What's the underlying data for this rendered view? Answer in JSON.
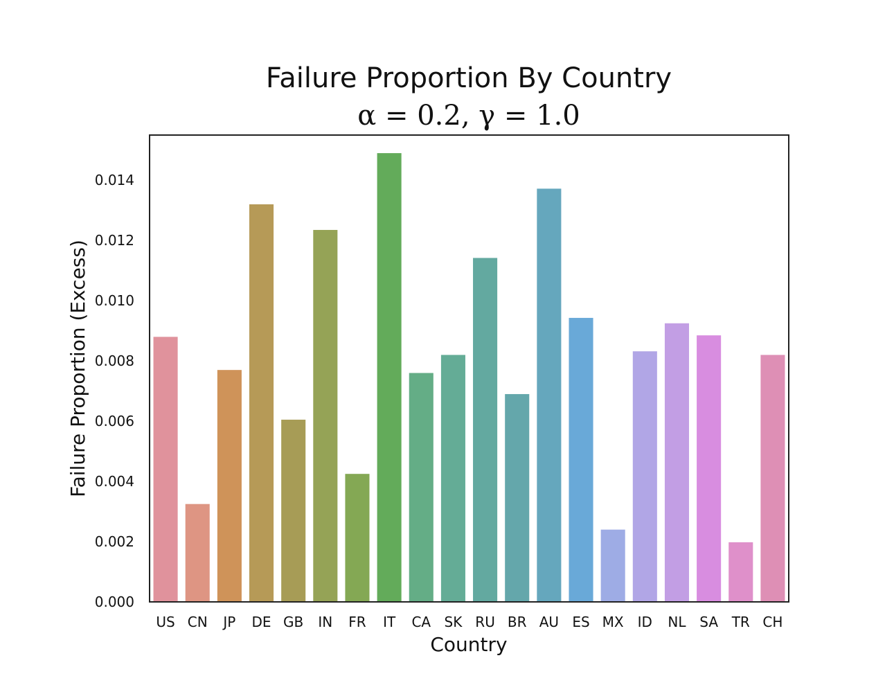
{
  "chart_data": {
    "type": "bar",
    "title": "Failure Proportion By Country",
    "subtitle": "α = 0.2, γ = 1.0",
    "xlabel": "Country",
    "ylabel": "Failure Proportion (Excess)",
    "categories": [
      "US",
      "CN",
      "JP",
      "DE",
      "GB",
      "IN",
      "FR",
      "IT",
      "CA",
      "SK",
      "RU",
      "BR",
      "AU",
      "ES",
      "MX",
      "ID",
      "NL",
      "SA",
      "TR",
      "CH"
    ],
    "values": [
      0.0088,
      0.00325,
      0.0077,
      0.0132,
      0.00605,
      0.01235,
      0.00425,
      0.0149,
      0.0076,
      0.0082,
      0.01142,
      0.0069,
      0.01372,
      0.00943,
      0.0024,
      0.00832,
      0.00925,
      0.00885,
      0.00198,
      0.0082
    ],
    "colors": [
      "#e0929c",
      "#de9583",
      "#cf9359",
      "#b69a57",
      "#a79c56",
      "#95a356",
      "#84a854",
      "#63ab5a",
      "#64ad86",
      "#64ac96",
      "#63a9a0",
      "#64a7ab",
      "#65a7bd",
      "#69a9d8",
      "#9eace5",
      "#b1a6e6",
      "#c29ee4",
      "#d88de0",
      "#df90ca",
      "#de8fb5"
    ],
    "ylim": [
      0,
      0.0155
    ],
    "yticks": [
      "0.000",
      "0.002",
      "0.004",
      "0.006",
      "0.008",
      "0.010",
      "0.012",
      "0.014"
    ],
    "grid": false,
    "legend": "none"
  }
}
